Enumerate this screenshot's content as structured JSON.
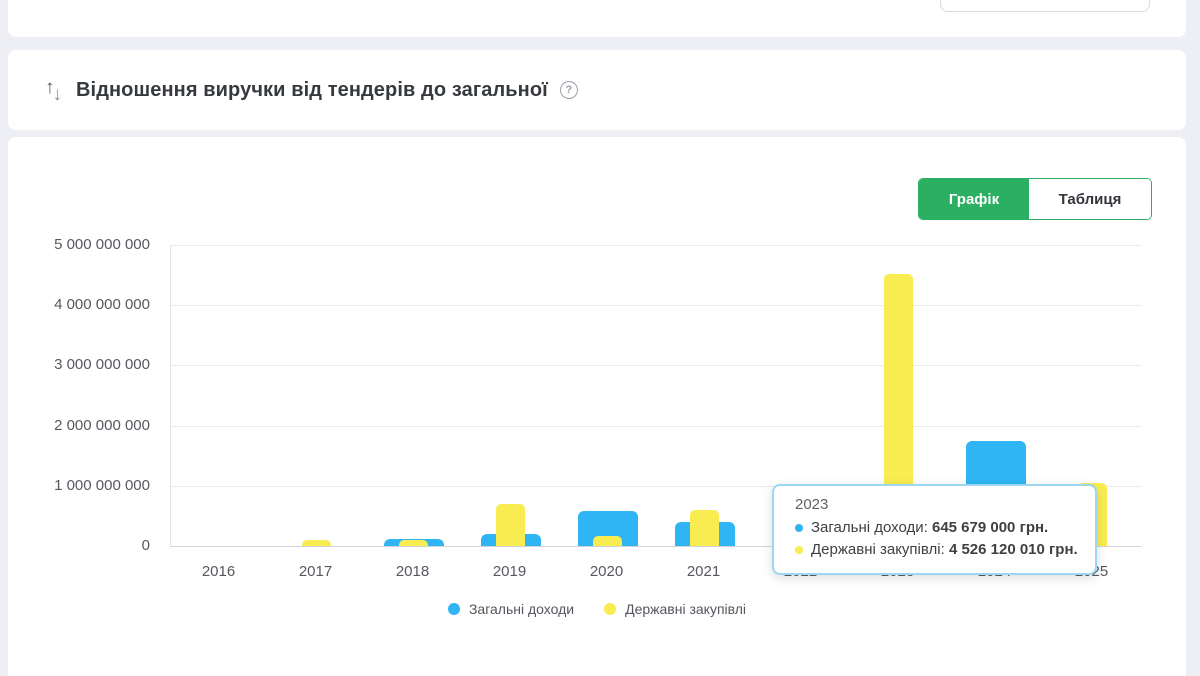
{
  "colors": {
    "page_bg": "#edeff4",
    "card_bg": "#ffffff",
    "blue": "#2fb5f3",
    "yellow": "#f8ec51",
    "green": "#2baf63",
    "tooltip_border": "#9dd7f4"
  },
  "header": {
    "title": "Відношення виручки від тендерів до загальної",
    "icons": {
      "sort_up": "↑",
      "sort_down": "↓",
      "help": "?"
    }
  },
  "chart_card": {
    "toggle": {
      "chart_label": "Графік",
      "table_label": "Таблиця",
      "active": "Графік"
    }
  },
  "tooltip": {
    "year": "2023",
    "rows": [
      {
        "label": "Загальні доходи",
        "value": "645 679 000 грн.",
        "color": "#2fb5f3"
      },
      {
        "label": "Державні закупівлі",
        "value": "4 526 120 010 грн.",
        "color": "#f8ec51"
      }
    ]
  },
  "chart_data": {
    "type": "bar",
    "title": "Відношення виручки від тендерів до загальної",
    "categories": [
      "2016",
      "2017",
      "2018",
      "2019",
      "2020",
      "2021",
      "2022",
      "2023",
      "2024",
      "2025"
    ],
    "series": [
      {
        "name": "Загальні доходи",
        "color": "#2fb5f3",
        "values": [
          0,
          0,
          110000000,
          200000000,
          580000000,
          400000000,
          null,
          645679000,
          1750000000,
          0
        ]
      },
      {
        "name": "Державні закупівлі",
        "color": "#f8ec51",
        "values": [
          0,
          100000000,
          95000000,
          700000000,
          170000000,
          600000000,
          null,
          4526120010,
          null,
          1050000000
        ]
      }
    ],
    "ylim": [
      0,
      5000000000
    ],
    "ytick_labels": [
      "5 000 000 000",
      "4 000 000 000",
      "3 000 000 000",
      "2 000 000 000",
      "1 000 000 000",
      "0"
    ],
    "units": "грн",
    "grid": "horizontal",
    "legend_position": "bottom",
    "occluded_by_tooltip": "Стовпчики 2022 (обидві серії) та «Державні закупівлі» 2024 приховані спливаючою підказкою"
  }
}
